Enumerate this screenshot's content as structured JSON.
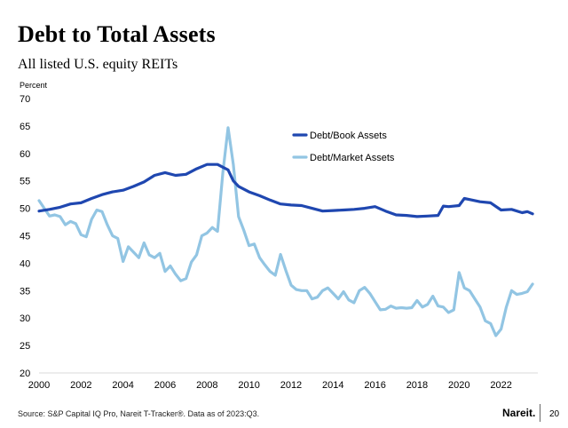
{
  "slide": {
    "title": "Debt to Total Assets",
    "subtitle": "All listed U.S. equity REITs",
    "source": "Source: S&P Capital IQ Pro, Nareit T-Tracker®. Data as of 2023:Q3.",
    "logo": "Nareit.",
    "page_number": "20"
  },
  "chart_data": {
    "type": "line",
    "title": "Debt to Total Assets",
    "ylabel": "Percent",
    "xlabel": "",
    "xlim": [
      2000,
      2023.75
    ],
    "ylim": [
      20,
      70
    ],
    "yticks": [
      20,
      25,
      30,
      35,
      40,
      45,
      50,
      55,
      60,
      65,
      70
    ],
    "xticks": [
      2000,
      2002,
      2004,
      2006,
      2008,
      2010,
      2012,
      2014,
      2016,
      2018,
      2020,
      2022
    ],
    "legend_position": "upper-right",
    "grid": false,
    "series": [
      {
        "name": "Debt/Book Assets",
        "color": "#1f47b0",
        "points": [
          [
            2000.0,
            49.5
          ],
          [
            2000.5,
            49.8
          ],
          [
            2001.0,
            50.2
          ],
          [
            2001.5,
            50.8
          ],
          [
            2002.0,
            51.0
          ],
          [
            2002.5,
            51.8
          ],
          [
            2003.0,
            52.5
          ],
          [
            2003.5,
            53.0
          ],
          [
            2004.0,
            53.3
          ],
          [
            2004.5,
            54.0
          ],
          [
            2005.0,
            54.8
          ],
          [
            2005.5,
            56.0
          ],
          [
            2006.0,
            56.5
          ],
          [
            2006.5,
            56.0
          ],
          [
            2007.0,
            56.2
          ],
          [
            2007.5,
            57.2
          ],
          [
            2008.0,
            58.0
          ],
          [
            2008.5,
            58.0
          ],
          [
            2009.0,
            57.0
          ],
          [
            2009.25,
            55.0
          ],
          [
            2009.5,
            54.0
          ],
          [
            2010.0,
            53.0
          ],
          [
            2010.5,
            52.3
          ],
          [
            2011.0,
            51.5
          ],
          [
            2011.5,
            50.8
          ],
          [
            2012.0,
            50.6
          ],
          [
            2012.5,
            50.5
          ],
          [
            2013.0,
            50.0
          ],
          [
            2013.5,
            49.5
          ],
          [
            2014.0,
            49.6
          ],
          [
            2014.5,
            49.7
          ],
          [
            2015.0,
            49.8
          ],
          [
            2015.5,
            50.0
          ],
          [
            2016.0,
            50.3
          ],
          [
            2016.5,
            49.5
          ],
          [
            2017.0,
            48.8
          ],
          [
            2017.5,
            48.7
          ],
          [
            2018.0,
            48.5
          ],
          [
            2018.5,
            48.6
          ],
          [
            2019.0,
            48.7
          ],
          [
            2019.25,
            50.4
          ],
          [
            2019.5,
            50.3
          ],
          [
            2020.0,
            50.5
          ],
          [
            2020.25,
            51.8
          ],
          [
            2020.5,
            51.6
          ],
          [
            2021.0,
            51.2
          ],
          [
            2021.5,
            51.0
          ],
          [
            2022.0,
            49.7
          ],
          [
            2022.5,
            49.8
          ],
          [
            2023.0,
            49.2
          ],
          [
            2023.25,
            49.4
          ],
          [
            2023.5,
            49.0
          ]
        ]
      },
      {
        "name": "Debt/Market Assets",
        "color": "#92c5e3",
        "points": [
          [
            2000.0,
            51.4
          ],
          [
            2000.25,
            50.0
          ],
          [
            2000.5,
            48.6
          ],
          [
            2000.75,
            48.8
          ],
          [
            2001.0,
            48.5
          ],
          [
            2001.25,
            47.0
          ],
          [
            2001.5,
            47.6
          ],
          [
            2001.75,
            47.2
          ],
          [
            2002.0,
            45.2
          ],
          [
            2002.25,
            44.8
          ],
          [
            2002.5,
            48.0
          ],
          [
            2002.75,
            49.7
          ],
          [
            2003.0,
            49.4
          ],
          [
            2003.25,
            47.0
          ],
          [
            2003.5,
            45.0
          ],
          [
            2003.75,
            44.5
          ],
          [
            2004.0,
            40.3
          ],
          [
            2004.25,
            43.0
          ],
          [
            2004.5,
            42.0
          ],
          [
            2004.75,
            41.0
          ],
          [
            2005.0,
            43.7
          ],
          [
            2005.25,
            41.5
          ],
          [
            2005.5,
            41.0
          ],
          [
            2005.75,
            41.8
          ],
          [
            2006.0,
            38.5
          ],
          [
            2006.25,
            39.5
          ],
          [
            2006.5,
            38.0
          ],
          [
            2006.75,
            36.8
          ],
          [
            2007.0,
            37.2
          ],
          [
            2007.25,
            40.2
          ],
          [
            2007.5,
            41.5
          ],
          [
            2007.75,
            45.0
          ],
          [
            2008.0,
            45.5
          ],
          [
            2008.25,
            46.5
          ],
          [
            2008.5,
            45.8
          ],
          [
            2008.75,
            56.5
          ],
          [
            2009.0,
            64.7
          ],
          [
            2009.25,
            58.0
          ],
          [
            2009.5,
            48.5
          ],
          [
            2009.75,
            46.0
          ],
          [
            2010.0,
            43.2
          ],
          [
            2010.25,
            43.5
          ],
          [
            2010.5,
            41.0
          ],
          [
            2010.75,
            39.7
          ],
          [
            2011.0,
            38.5
          ],
          [
            2011.25,
            37.8
          ],
          [
            2011.5,
            41.6
          ],
          [
            2011.75,
            38.7
          ],
          [
            2012.0,
            36.0
          ],
          [
            2012.25,
            35.2
          ],
          [
            2012.5,
            35.0
          ],
          [
            2012.75,
            35.0
          ],
          [
            2013.0,
            33.5
          ],
          [
            2013.25,
            33.8
          ],
          [
            2013.5,
            35.0
          ],
          [
            2013.75,
            35.5
          ],
          [
            2014.0,
            34.5
          ],
          [
            2014.25,
            33.5
          ],
          [
            2014.5,
            34.8
          ],
          [
            2014.75,
            33.3
          ],
          [
            2015.0,
            32.8
          ],
          [
            2015.25,
            35.0
          ],
          [
            2015.5,
            35.6
          ],
          [
            2015.75,
            34.5
          ],
          [
            2016.0,
            33.0
          ],
          [
            2016.25,
            31.5
          ],
          [
            2016.5,
            31.6
          ],
          [
            2016.75,
            32.2
          ],
          [
            2017.0,
            31.8
          ],
          [
            2017.25,
            31.9
          ],
          [
            2017.5,
            31.8
          ],
          [
            2017.75,
            31.9
          ],
          [
            2018.0,
            33.2
          ],
          [
            2018.25,
            32.0
          ],
          [
            2018.5,
            32.5
          ],
          [
            2018.75,
            34.0
          ],
          [
            2019.0,
            32.2
          ],
          [
            2019.25,
            32.0
          ],
          [
            2019.5,
            31.0
          ],
          [
            2019.75,
            31.5
          ],
          [
            2020.0,
            38.3
          ],
          [
            2020.25,
            35.5
          ],
          [
            2020.5,
            35.0
          ],
          [
            2020.75,
            33.5
          ],
          [
            2021.0,
            32.0
          ],
          [
            2021.25,
            29.5
          ],
          [
            2021.5,
            29.0
          ],
          [
            2021.75,
            26.8
          ],
          [
            2022.0,
            28.0
          ],
          [
            2022.25,
            32.0
          ],
          [
            2022.5,
            35.0
          ],
          [
            2022.75,
            34.3
          ],
          [
            2023.0,
            34.5
          ],
          [
            2023.25,
            34.8
          ],
          [
            2023.5,
            36.2
          ]
        ]
      }
    ]
  }
}
